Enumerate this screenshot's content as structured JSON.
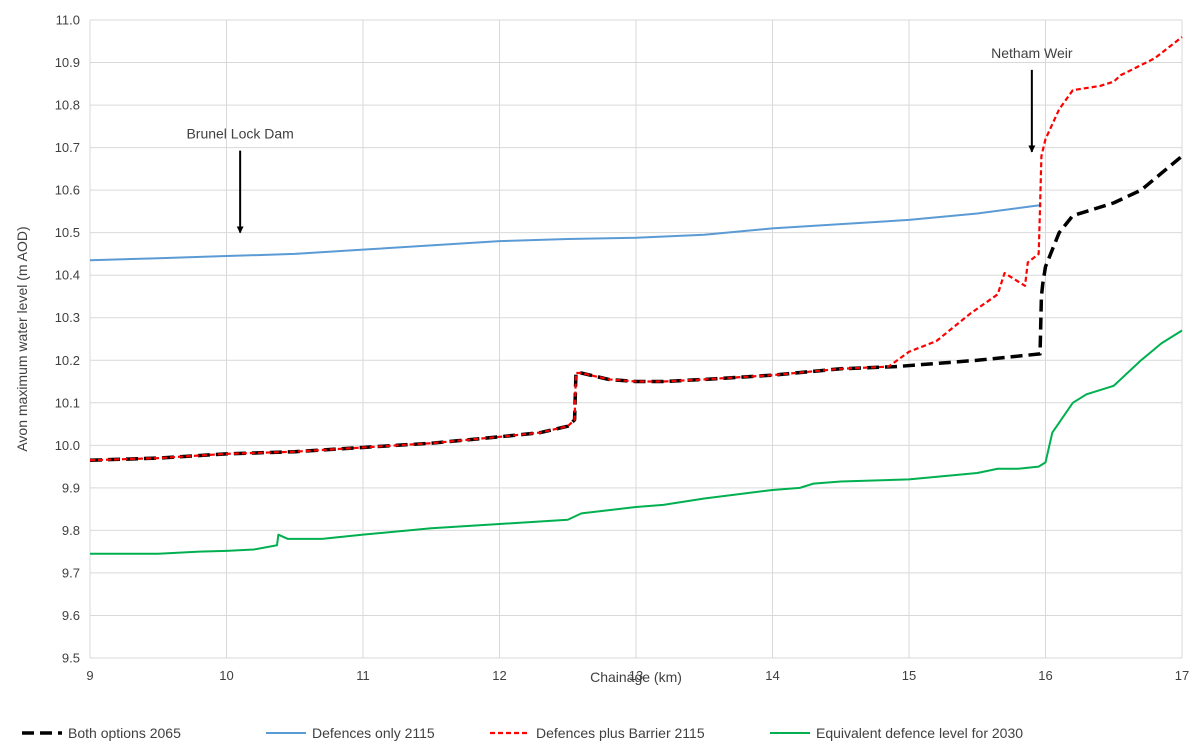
{
  "chart_data": {
    "type": "line",
    "xlabel": "Chainage (km)",
    "ylabel": "Avon maximum water level (m AOD)",
    "xlim": [
      9,
      17
    ],
    "ylim": [
      9.5,
      11.0
    ],
    "x_ticks": [
      "9",
      "10",
      "11",
      "12",
      "13",
      "14",
      "15",
      "16",
      "17"
    ],
    "y_ticks": [
      "9.5",
      "9.6",
      "9.7",
      "9.8",
      "9.9",
      "10.0",
      "10.1",
      "10.2",
      "10.3",
      "10.4",
      "10.5",
      "10.6",
      "10.7",
      "10.8",
      "10.9",
      "11.0"
    ],
    "grid": true,
    "legend_position": "bottom",
    "annotations": [
      {
        "text": "Brunel Lock Dam",
        "x": 10.1,
        "y": 10.5
      },
      {
        "text": "Netham Weir",
        "x": 15.9,
        "y": 10.69
      }
    ],
    "series": [
      {
        "name": "Both options 2065",
        "color": "#000000",
        "style": "dashed-thick",
        "x": [
          9.0,
          9.5,
          10.0,
          10.5,
          11.0,
          11.5,
          12.0,
          12.3,
          12.5,
          12.55,
          12.56,
          12.6,
          12.8,
          13.0,
          13.2,
          13.5,
          14.0,
          14.5,
          14.9,
          15.5,
          15.96,
          15.97,
          15.98,
          16.0,
          16.1,
          16.2,
          16.35,
          16.5,
          16.7,
          16.85,
          17.0
        ],
        "y": [
          9.965,
          9.97,
          9.98,
          9.985,
          9.995,
          10.005,
          10.02,
          10.03,
          10.045,
          10.06,
          10.17,
          10.17,
          10.155,
          10.15,
          10.15,
          10.155,
          10.165,
          10.18,
          10.185,
          10.2,
          10.215,
          10.35,
          10.38,
          10.42,
          10.5,
          10.54,
          10.555,
          10.57,
          10.6,
          10.64,
          10.68
        ]
      },
      {
        "name": "Defences only 2115",
        "color": "#5b9bd5",
        "style": "solid",
        "x": [
          9.0,
          9.5,
          10.0,
          10.5,
          11.0,
          11.5,
          12.0,
          12.5,
          13.0,
          13.5,
          14.0,
          14.5,
          15.0,
          15.5,
          15.97
        ],
        "y": [
          10.435,
          10.44,
          10.445,
          10.45,
          10.46,
          10.47,
          10.48,
          10.485,
          10.488,
          10.495,
          10.51,
          10.52,
          10.53,
          10.545,
          10.565
        ]
      },
      {
        "name": "Defences plus Barrier 2115",
        "color": "#ff0000",
        "style": "dashed",
        "x": [
          9.0,
          9.5,
          10.0,
          10.5,
          11.0,
          11.5,
          12.0,
          12.3,
          12.5,
          12.55,
          12.56,
          12.6,
          12.8,
          13.0,
          13.2,
          13.5,
          14.0,
          14.5,
          14.85,
          15.0,
          15.2,
          15.45,
          15.65,
          15.7,
          15.85,
          15.87,
          15.95,
          15.96,
          15.97,
          16.0,
          16.1,
          16.2,
          16.4,
          16.5,
          16.55,
          16.8,
          17.0
        ],
        "y": [
          9.965,
          9.97,
          9.98,
          9.985,
          9.995,
          10.005,
          10.02,
          10.03,
          10.045,
          10.06,
          10.17,
          10.17,
          10.155,
          10.15,
          10.15,
          10.155,
          10.165,
          10.18,
          10.185,
          10.22,
          10.245,
          10.31,
          10.355,
          10.405,
          10.375,
          10.43,
          10.45,
          10.56,
          10.68,
          10.72,
          10.79,
          10.835,
          10.845,
          10.855,
          10.87,
          10.91,
          10.96
        ]
      },
      {
        "name": "Equivalent defence level for 2030",
        "color": "#00b050",
        "style": "solid",
        "x": [
          9.0,
          9.5,
          9.8,
          10.0,
          10.2,
          10.37,
          10.38,
          10.45,
          10.7,
          11.0,
          11.5,
          12.0,
          12.5,
          12.6,
          13.0,
          13.2,
          13.5,
          14.0,
          14.2,
          14.3,
          14.5,
          15.0,
          15.5,
          15.65,
          15.8,
          15.95,
          16.0,
          16.05,
          16.2,
          16.3,
          16.5,
          16.7,
          16.85,
          17.0
        ],
        "y": [
          9.745,
          9.745,
          9.75,
          9.752,
          9.755,
          9.765,
          9.79,
          9.78,
          9.78,
          9.79,
          9.805,
          9.815,
          9.825,
          9.84,
          9.855,
          9.86,
          9.875,
          9.895,
          9.9,
          9.91,
          9.915,
          9.92,
          9.935,
          9.945,
          9.945,
          9.95,
          9.96,
          10.03,
          10.1,
          10.12,
          10.14,
          10.2,
          10.24,
          10.27
        ]
      }
    ]
  }
}
